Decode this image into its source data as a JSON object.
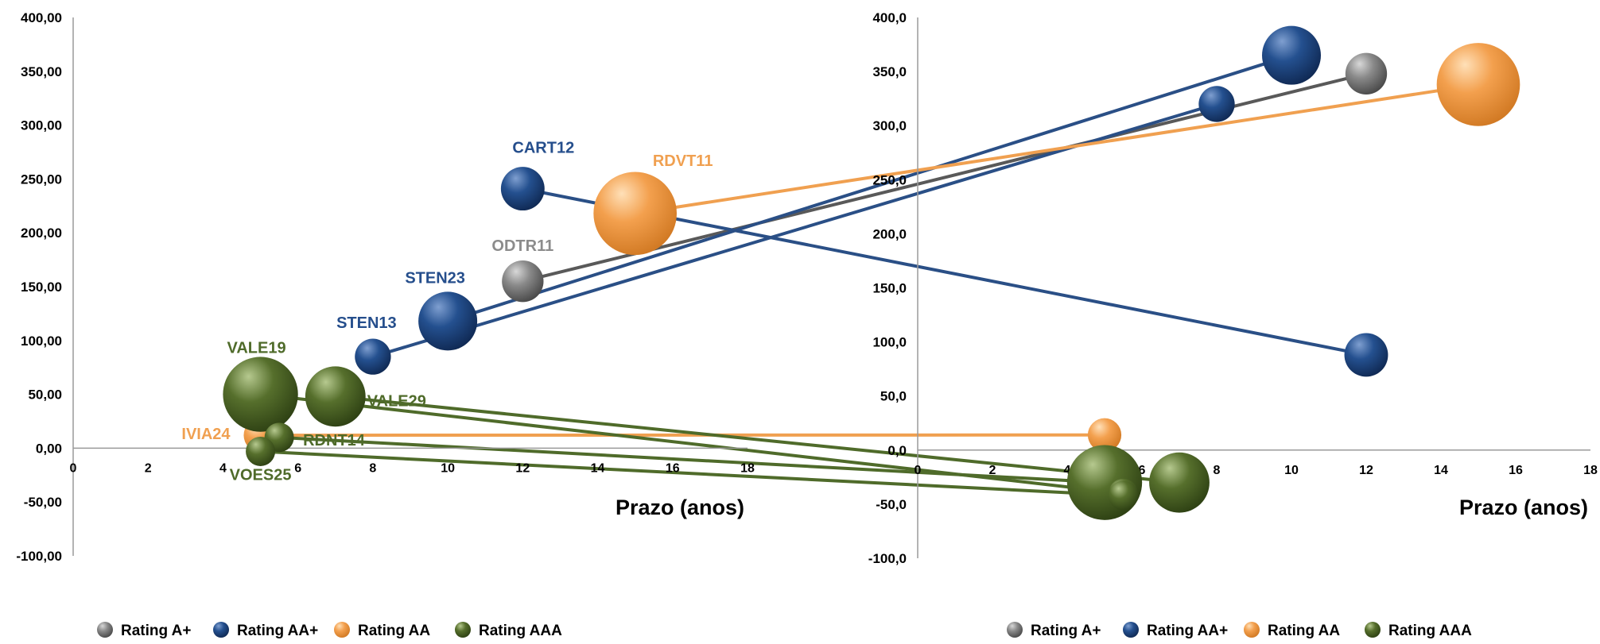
{
  "colors": {
    "rating_a_plus": "#6e6e6e",
    "rating_aa_plus": "#1f3f73",
    "rating_aa": "#f0a050",
    "rating_aaa": "#4f6b2a",
    "axis": "#000000",
    "connector_aa_plus": "#2a4f86",
    "connector_a_plus": "#595959",
    "connector_aa": "#f0a050",
    "connector_aaa": "#4f6b2a"
  },
  "chart_data": [
    {
      "type": "scatter",
      "subtype": "bubble",
      "title": "",
      "xlabel": "Prazo (anos)",
      "ylabel": "",
      "xlim": [
        0,
        18
      ],
      "ylim": [
        -100,
        400
      ],
      "x_ticks": [
        "0",
        "2",
        "4",
        "6",
        "8",
        "10",
        "12",
        "14",
        "16",
        "18"
      ],
      "y_ticks": [
        "400,00",
        "350,00",
        "300,00",
        "250,00",
        "200,00",
        "150,00",
        "100,00",
        "50,00",
        "0,00",
        "-50,00",
        "-100,00"
      ],
      "legend": [
        "Rating A+",
        "Rating AA+",
        "Rating AA",
        "Rating AAA"
      ],
      "legend_position": "bottom",
      "series": [
        {
          "name": "Rating A+",
          "color_key": "rating_a_plus",
          "points": [
            {
              "label": "ODTR11",
              "x": 12,
              "y": 155,
              "size": 2
            }
          ]
        },
        {
          "name": "Rating AA+",
          "color_key": "rating_aa_plus",
          "points": [
            {
              "label": "CART12",
              "x": 12,
              "y": 241,
              "size": 2.2
            },
            {
              "label": "STEN23",
              "x": 10,
              "y": 118,
              "size": 4
            },
            {
              "label": "STEN13",
              "x": 8,
              "y": 85,
              "size": 1.5
            }
          ]
        },
        {
          "name": "Rating AA",
          "color_key": "rating_aa",
          "points": [
            {
              "label": "RDVT11",
              "x": 15,
              "y": 218,
              "size": 8
            },
            {
              "label": "IVIA24",
              "x": 5,
              "y": 12,
              "size": 1.3
            }
          ]
        },
        {
          "name": "Rating AAA",
          "color_key": "rating_aaa",
          "points": [
            {
              "label": "VALE19",
              "x": 5,
              "y": 50,
              "size": 6.5
            },
            {
              "label": "VALE29",
              "x": 7,
              "y": 48,
              "size": 4.2
            },
            {
              "label": "RDNT14",
              "x": 5.5,
              "y": 10,
              "size": 1.0
            },
            {
              "label": "VOES25",
              "x": 5,
              "y": -3,
              "size": 1.0
            }
          ]
        }
      ]
    },
    {
      "type": "scatter",
      "subtype": "bubble",
      "title": "",
      "xlabel": "Prazo (anos)",
      "ylabel": "",
      "xlim": [
        0,
        18
      ],
      "ylim": [
        -100,
        400
      ],
      "x_ticks": [
        "0",
        "2",
        "4",
        "6",
        "8",
        "10",
        "12",
        "14",
        "16",
        "18"
      ],
      "y_ticks": [
        "400,0",
        "350,0",
        "300,0",
        "250,0",
        "200,0",
        "150,0",
        "100,0",
        "50,0",
        "0,0",
        "-50,0",
        "-100,0"
      ],
      "legend": [
        "Rating A+",
        "Rating AA+",
        "Rating AA",
        "Rating AAA"
      ],
      "legend_position": "bottom",
      "series": [
        {
          "name": "Rating A+",
          "color_key": "rating_a_plus",
          "points": [
            {
              "x": 12,
              "y": 348,
              "size": 2
            }
          ]
        },
        {
          "name": "Rating AA+",
          "color_key": "rating_aa_plus",
          "points": [
            {
              "x": 10,
              "y": 365,
              "size": 4
            },
            {
              "x": 8,
              "y": 320,
              "size": 1.5
            },
            {
              "x": 12,
              "y": 88,
              "size": 2.2
            }
          ]
        },
        {
          "name": "Rating AA",
          "color_key": "rating_aa",
          "points": [
            {
              "x": 15,
              "y": 338,
              "size": 8
            },
            {
              "x": 5,
              "y": 14,
              "size": 1.3
            }
          ]
        },
        {
          "name": "Rating AAA",
          "color_key": "rating_aaa",
          "points": [
            {
              "x": 5,
              "y": -30,
              "size": 6.5
            },
            {
              "x": 7,
              "y": -30,
              "size": 4.2
            },
            {
              "x": 5.5,
              "y": -40,
              "size": 1.0
            },
            {
              "x": 5.5,
              "y": -42,
              "size": 1.0
            }
          ]
        }
      ]
    }
  ],
  "connectors": [
    {
      "from": "ODTR11",
      "to_x": 12,
      "to_y": 348,
      "color_key": "connector_a_plus"
    },
    {
      "from": "STEN13",
      "to_x": 8,
      "to_y": 320,
      "color_key": "connector_aa_plus"
    },
    {
      "from": "STEN23",
      "to_x": 10,
      "to_y": 365,
      "color_key": "connector_aa_plus"
    },
    {
      "from": "CART12",
      "to_x": 12,
      "to_y": 88,
      "color_key": "connector_aa_plus"
    },
    {
      "from": "RDVT11",
      "to_x": 15,
      "to_y": 338,
      "color_key": "connector_aa"
    },
    {
      "from": "IVIA24",
      "to_x": 5,
      "to_y": 14,
      "color_key": "connector_aa"
    },
    {
      "from": "VALE19",
      "to_x": 5.5,
      "to_y": -40,
      "color_key": "connector_aaa"
    },
    {
      "from": "VALE29",
      "to_x": 7,
      "to_y": -30,
      "color_key": "connector_aaa"
    },
    {
      "from": "RDNT14",
      "to_x": 5,
      "to_y": -30,
      "color_key": "connector_aaa"
    },
    {
      "from": "VOES25",
      "to_x": 5.5,
      "to_y": -42,
      "color_key": "connector_aaa"
    }
  ]
}
